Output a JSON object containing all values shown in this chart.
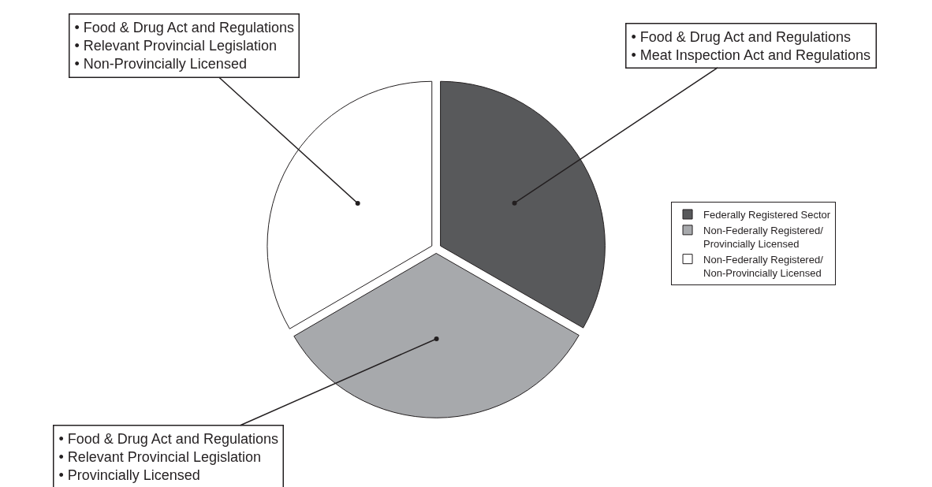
{
  "chart_data": {
    "type": "pie",
    "categories": [
      "Federally Registered Sector",
      "Non-Federally Registered/\nProvincially Licensed",
      "Non-Federally Registered/\nNon-Provincially Licensed"
    ],
    "values": [
      33.3,
      33.3,
      33.4
    ],
    "colors": [
      "#58595b",
      "#a7a9ac",
      "#ffffff"
    ],
    "legend": "right",
    "annotations": [
      "• Food & Drug Act and Regulations\n• Meat Inspection Act and Regulations",
      "• Food & Drug Act and Regulations\n• Relevant Provincial Legislation\n• Provincially Licensed",
      "• Food & Drug Act and Regulations\n• Relevant Provincial Legislation\n• Non-Provincially Licensed"
    ]
  }
}
